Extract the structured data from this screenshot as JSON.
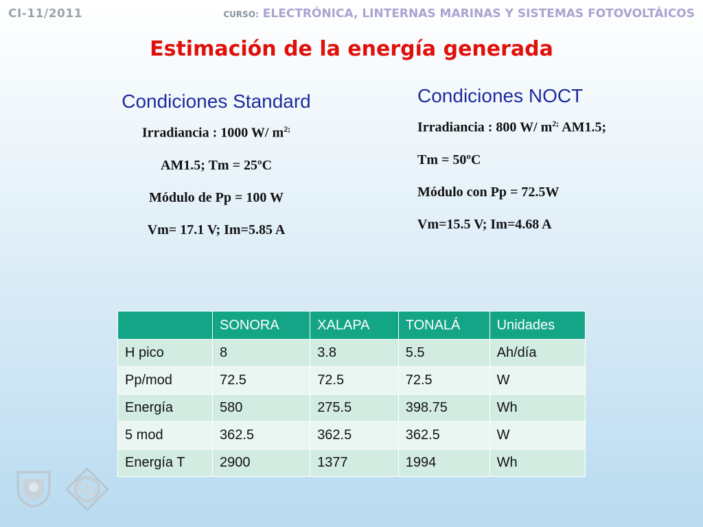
{
  "header": {
    "code": "CI-11/2011",
    "course_prefix": "CURSO:",
    "course": "ELECTRÓNICA, LINTERNAS MARINAS Y SISTEMAS FOTOVOLTÁICOS"
  },
  "title": "Estimación de la energía generada",
  "standard": {
    "heading": "Condiciones Standard",
    "irr_text": "Irradiancia  : 1000 W/ m",
    "irr_sup": "2;",
    "line2": "AM1.5; Tm = 25ºC",
    "line3": "Módulo de  Pp = 100 W",
    "line4": "Vm= 17.1 V; Im=5.85 A"
  },
  "noct": {
    "heading": "Condiciones NOCT",
    "irr_text": "Irradiancia  : 800 W/ m",
    "irr_sup": "2;",
    "irr_tail": " AM1.5;",
    "line2": "Tm = 50ºC",
    "line3": "Módulo con Pp = 72.5W",
    "line4": "Vm=15.5 V; Im=4.68 A"
  },
  "table": {
    "headers": [
      "",
      "SONORA",
      "XALAPA",
      "TONALÁ",
      "Unidades"
    ],
    "rows": [
      [
        "H pico",
        "8",
        "3.8",
        "5.5",
        "Ah/día"
      ],
      [
        "Pp/mod",
        "72.5",
        "72.5",
        "72.5",
        "W"
      ],
      [
        "Energía",
        "580",
        "275.5",
        "398.75",
        "Wh"
      ],
      [
        "5 mod",
        "362.5",
        "362.5",
        "362.5",
        "W"
      ],
      [
        "Energía T",
        "2900",
        "1377",
        "1994",
        "Wh"
      ]
    ]
  },
  "logos": [
    "university-seal-icon",
    "faculty-logo-icon"
  ]
}
